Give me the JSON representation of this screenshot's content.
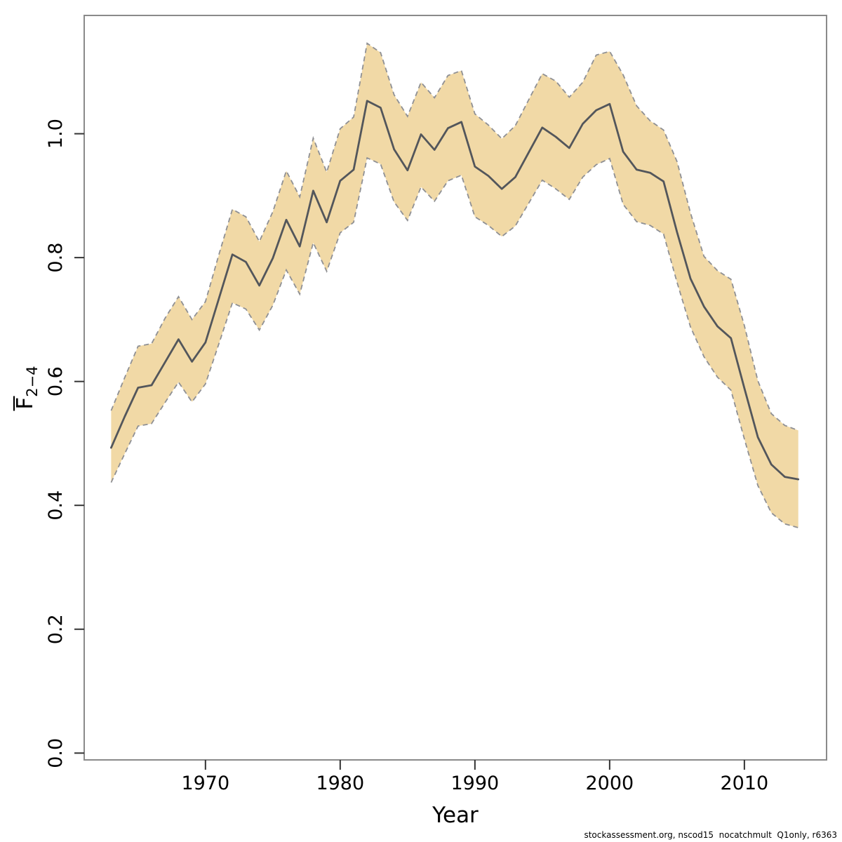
{
  "figure": {
    "title": "",
    "xlabel": "Year",
    "ylabel_main": "F",
    "ylabel_sub": "2−4",
    "footer": "stockassessment.org, nscod15  nocatchmult  Q1only, r6363"
  },
  "chart_data": {
    "type": "line",
    "title": "",
    "xlabel": "Year",
    "ylabel": "Fbar(2-4)",
    "grid": false,
    "legend": "none",
    "xlim": [
      1961.0,
      2016.1
    ],
    "ylim": [
      -0.011,
      1.191
    ],
    "x_ticks": [
      1970,
      1980,
      1990,
      2000,
      2010
    ],
    "y_ticks": [
      0.0,
      0.2,
      0.4,
      0.6,
      0.8,
      1.0
    ],
    "y_tick_labels": [
      "0.0",
      "0.2",
      "0.4",
      "0.6",
      "0.8",
      "1.0"
    ],
    "x": [
      1963,
      1964,
      1965,
      1966,
      1967,
      1968,
      1969,
      1970,
      1971,
      1972,
      1973,
      1974,
      1975,
      1976,
      1977,
      1978,
      1979,
      1980,
      1981,
      1982,
      1983,
      1984,
      1985,
      1986,
      1987,
      1988,
      1989,
      1990,
      1991,
      1992,
      1993,
      1994,
      1995,
      1996,
      1997,
      1998,
      1999,
      2000,
      2001,
      2002,
      2003,
      2004,
      2005,
      2006,
      2007,
      2008,
      2009,
      2010,
      2011,
      2012,
      2013,
      2014
    ],
    "series": [
      {
        "name": "Fbar 2-4 estimate",
        "values": [
          0.493,
          0.543,
          0.59,
          0.594,
          0.631,
          0.668,
          0.632,
          0.663,
          0.734,
          0.805,
          0.793,
          0.755,
          0.799,
          0.861,
          0.818,
          0.908,
          0.857,
          0.924,
          0.942,
          1.053,
          1.042,
          0.975,
          0.941,
          0.999,
          0.974,
          1.009,
          1.019,
          0.947,
          0.932,
          0.911,
          0.93,
          0.97,
          1.01,
          0.995,
          0.977,
          1.016,
          1.038,
          1.048,
          0.971,
          0.942,
          0.937,
          0.923,
          0.841,
          0.766,
          0.721,
          0.689,
          0.67,
          0.589,
          0.51,
          0.466,
          0.446,
          0.442
        ]
      },
      {
        "name": "lower 95% CI",
        "values": [
          0.437,
          0.483,
          0.528,
          0.532,
          0.566,
          0.599,
          0.567,
          0.596,
          0.661,
          0.727,
          0.717,
          0.683,
          0.723,
          0.78,
          0.741,
          0.824,
          0.778,
          0.84,
          0.857,
          0.961,
          0.951,
          0.89,
          0.86,
          0.914,
          0.891,
          0.924,
          0.933,
          0.866,
          0.852,
          0.834,
          0.851,
          0.888,
          0.925,
          0.911,
          0.894,
          0.93,
          0.95,
          0.96,
          0.886,
          0.858,
          0.852,
          0.838,
          0.76,
          0.688,
          0.64,
          0.607,
          0.586,
          0.507,
          0.432,
          0.388,
          0.37,
          0.364
        ]
      },
      {
        "name": "upper 95% CI",
        "values": [
          0.553,
          0.606,
          0.657,
          0.661,
          0.702,
          0.737,
          0.7,
          0.729,
          0.805,
          0.878,
          0.866,
          0.826,
          0.874,
          0.94,
          0.898,
          0.993,
          0.938,
          1.008,
          1.027,
          1.146,
          1.131,
          1.063,
          1.028,
          1.083,
          1.058,
          1.094,
          1.102,
          1.032,
          1.014,
          0.992,
          1.013,
          1.055,
          1.097,
          1.085,
          1.059,
          1.083,
          1.127,
          1.133,
          1.095,
          1.045,
          1.021,
          1.006,
          0.955,
          0.872,
          0.802,
          0.779,
          0.765,
          0.69,
          0.601,
          0.548,
          0.529,
          0.521
        ]
      }
    ],
    "band_color": "#f1d9a6",
    "band_edge_color": "#8f9094",
    "line_color": "#53565b",
    "box_color": "#8a8a8a",
    "tick_color": "#333333",
    "text_color": "#000000"
  }
}
